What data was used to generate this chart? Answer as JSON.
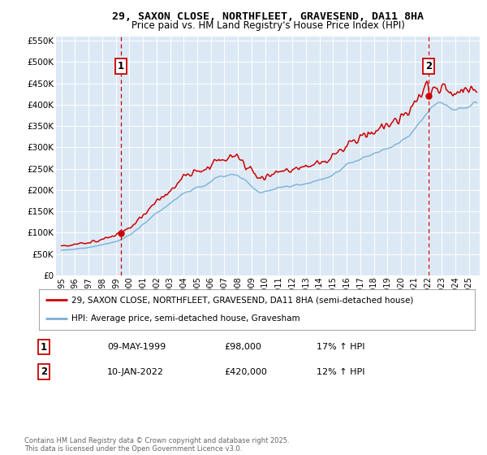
{
  "title": "29, SAXON CLOSE, NORTHFLEET, GRAVESEND, DA11 8HA",
  "subtitle": "Price paid vs. HM Land Registry's House Price Index (HPI)",
  "legend_line1": "29, SAXON CLOSE, NORTHFLEET, GRAVESEND, DA11 8HA (semi-detached house)",
  "legend_line2": "HPI: Average price, semi-detached house, Gravesham",
  "footnote": "Contains HM Land Registry data © Crown copyright and database right 2025.\nThis data is licensed under the Open Government Licence v3.0.",
  "sale1_label": "1",
  "sale1_date": "09-MAY-1999",
  "sale1_price": "£98,000",
  "sale1_hpi": "17% ↑ HPI",
  "sale2_label": "2",
  "sale2_date": "10-JAN-2022",
  "sale2_price": "£420,000",
  "sale2_hpi": "12% ↑ HPI",
  "red_color": "#cc0000",
  "blue_color": "#7aafd4",
  "plot_bg": "#dce9f5",
  "grid_color": "#ffffff",
  "ylim": [
    0,
    560000
  ],
  "yticks": [
    0,
    50000,
    100000,
    150000,
    200000,
    250000,
    300000,
    350000,
    400000,
    450000,
    500000,
    550000
  ],
  "sale1_x": 1999.36,
  "sale1_y": 98000,
  "sale2_x": 2022.03,
  "sale2_y": 420000,
  "xmin": 1994.6,
  "xmax": 2025.8
}
